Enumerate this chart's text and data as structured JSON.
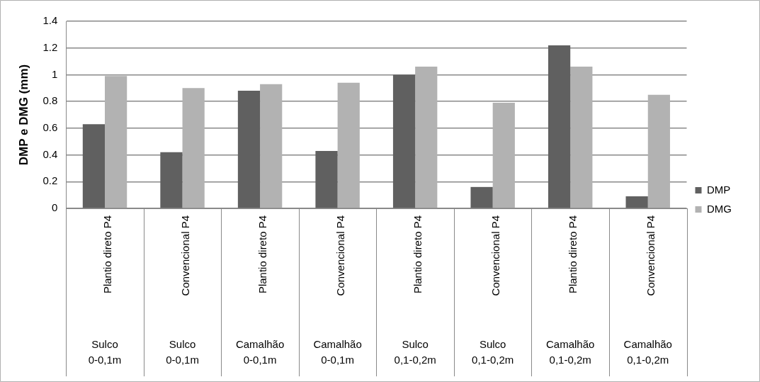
{
  "chart_data": {
    "type": "bar",
    "ylabel": "DMP e DMG (mm)",
    "categories": [
      "Plantio direto P4\nSulco\n0-0,1m",
      "Convencional P4\nSulco\n0-0,1m",
      "Plantio direto P4\nCamalhão\n0-0,1m",
      "Convencional P4\nCamalhão\n0-0,1m",
      "Plantio direto P4\nSulco\n0,1-0,2m",
      "Convencional P4\nSulco\n0,1-0,2m",
      "Plantio direto P4\nCamalhão\n0,1-0,2m",
      "Convencional P4\nCamalhão\n0,1-0,2m"
    ],
    "series": [
      {
        "name": "DMP",
        "color": "#606060",
        "values": [
          0.63,
          0.42,
          0.88,
          0.43,
          1.0,
          0.16,
          1.22,
          0.09
        ]
      },
      {
        "name": "DMG",
        "color": "#b2b2b2",
        "values": [
          0.99,
          0.9,
          0.93,
          0.94,
          1.06,
          0.79,
          1.06,
          0.85
        ]
      }
    ],
    "ylim": [
      0,
      1.4
    ],
    "yticks": [
      0,
      0.2,
      0.4,
      0.6,
      0.8,
      1,
      1.2,
      1.4
    ],
    "grid": "y",
    "legend": "right"
  }
}
